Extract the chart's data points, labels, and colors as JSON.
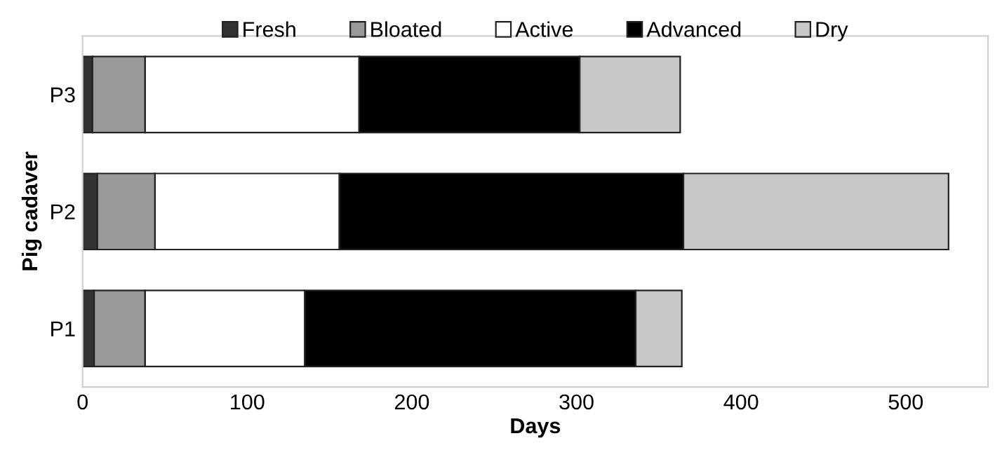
{
  "chart_data": {
    "type": "bar",
    "orientation": "horizontal",
    "stacked": true,
    "categories": [
      "P3",
      "P2",
      "P1"
    ],
    "series": [
      {
        "name": "Fresh",
        "color": "#333333",
        "values": [
          6,
          9,
          7
        ]
      },
      {
        "name": "Bloated",
        "color": "#999999",
        "values": [
          32,
          35,
          31
        ]
      },
      {
        "name": "Active",
        "color": "#ffffff",
        "values": [
          130,
          112,
          97
        ]
      },
      {
        "name": "Advanced",
        "color": "#000000",
        "values": [
          134,
          209,
          201
        ]
      },
      {
        "name": "Dry",
        "color": "#c8c8c8",
        "values": [
          61,
          161,
          28
        ]
      }
    ],
    "xlim": [
      0,
      550
    ],
    "xticks": [
      0,
      100,
      200,
      300,
      400,
      500
    ],
    "xlabel": "Days",
    "ylabel": "Pig cadaver",
    "legend": "top",
    "grid": false
  }
}
